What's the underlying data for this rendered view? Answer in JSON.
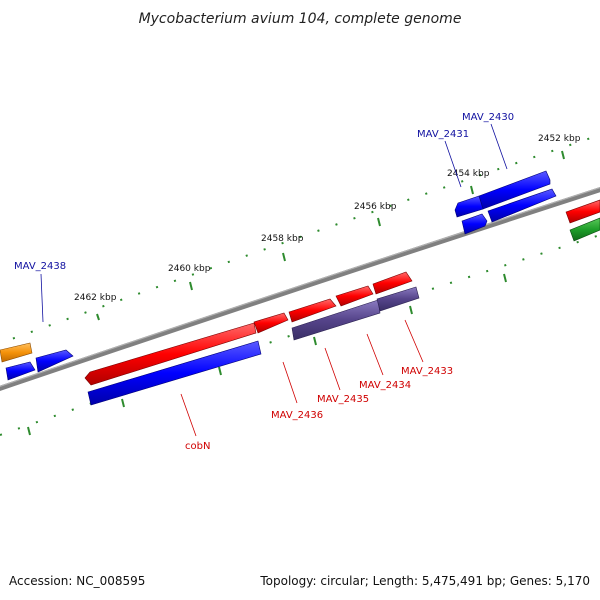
{
  "title": "Mycobacterium avium 104, complete genome",
  "footer": {
    "accession": "Accession: NC_008595",
    "summary": "Topology: circular; Length: 5,475,491 bp; Genes: 5,170"
  },
  "colors": {
    "backbone": "#808080",
    "tick": "#2e8b2e",
    "forward_gene": "#ff0000",
    "reverse_gene": "#0000ff",
    "operon": "#55448a",
    "orange_gene": "#f5920a",
    "green_gene": "#1e9e2a",
    "label_red": "#d00000",
    "label_blue": "#1010a0"
  },
  "chart_data": {
    "type": "genome-map",
    "scale_labels": [
      "2452 kbp",
      "2454 kbp",
      "2456 kbp",
      "2458 kbp",
      "2460 kbp",
      "2462 kbp"
    ],
    "gene_labels": [
      {
        "name": "MAV_2430",
        "strand": "reverse",
        "color": "blue"
      },
      {
        "name": "MAV_2431",
        "strand": "reverse",
        "color": "blue"
      },
      {
        "name": "MAV_2433",
        "strand": "forward",
        "color": "red"
      },
      {
        "name": "MAV_2434",
        "strand": "forward",
        "color": "red"
      },
      {
        "name": "MAV_2435",
        "strand": "forward",
        "color": "red"
      },
      {
        "name": "MAV_2436",
        "strand": "forward",
        "color": "red"
      },
      {
        "name": "cobN",
        "strand": "forward",
        "color": "red"
      },
      {
        "name": "MAV_2438",
        "strand": "reverse",
        "color": "blue"
      }
    ]
  }
}
